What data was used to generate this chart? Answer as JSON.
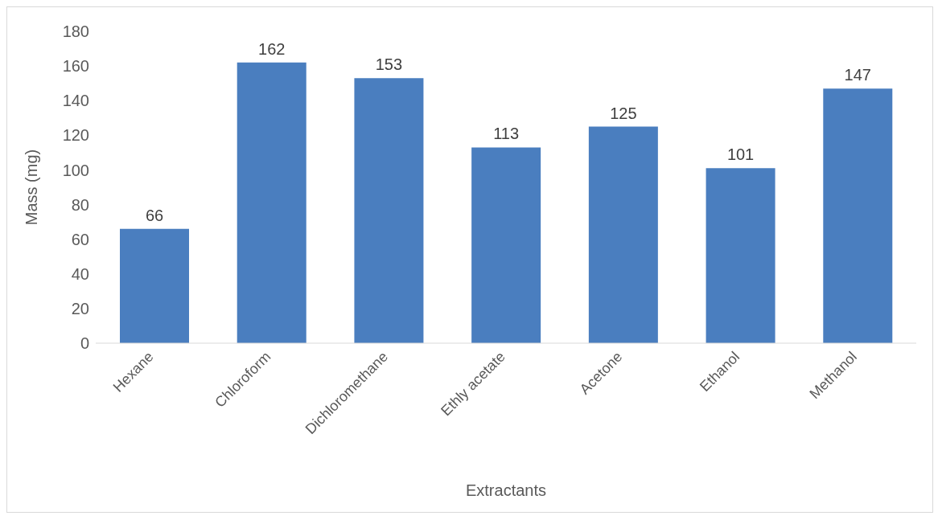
{
  "chart_data": {
    "type": "bar",
    "xlabel": "Extractants",
    "ylabel": "Mass (mg)",
    "categories": [
      "Hexane",
      "Chloroform",
      "Dichloromethane",
      "Ethly acetate",
      "Acetone",
      "Ethanol",
      "Methanol"
    ],
    "values": [
      66,
      162,
      153,
      113,
      125,
      101,
      147
    ],
    "color": "#4a7ebf",
    "ylim": [
      0,
      180
    ],
    "yticks": [
      0,
      20,
      40,
      60,
      80,
      100,
      120,
      140,
      160,
      180
    ],
    "grid": false,
    "data_labels": true
  }
}
